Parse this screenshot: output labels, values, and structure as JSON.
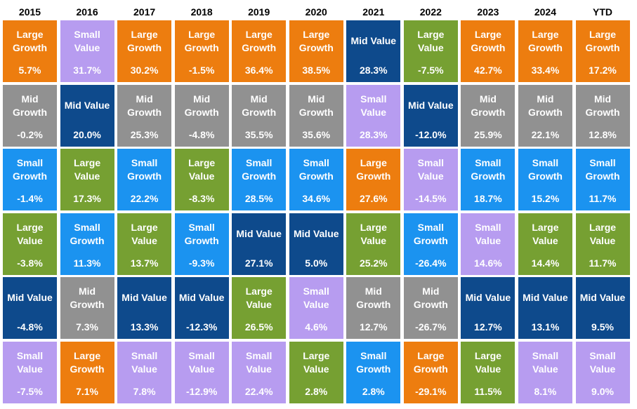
{
  "chart_data": {
    "type": "table",
    "columns": [
      "2015",
      "2016",
      "2017",
      "2018",
      "2019",
      "2020",
      "2021",
      "2022",
      "2023",
      "2024",
      "YTD"
    ],
    "styles": {
      "Large Growth": "#ED7D0F",
      "Small Value": "#B79CF0",
      "Mid Growth": "#919191",
      "Mid Value": "#0E4A8C",
      "Small Growth": "#1B93F0",
      "Large Value": "#76A032"
    },
    "cells": [
      [
        {
          "style": "Large Growth",
          "value": "5.7%"
        },
        {
          "style": "Mid Growth",
          "value": "-0.2%"
        },
        {
          "style": "Small Growth",
          "value": "-1.4%"
        },
        {
          "style": "Large Value",
          "value": "-3.8%"
        },
        {
          "style": "Mid Value",
          "value": "-4.8%"
        },
        {
          "style": "Small Value",
          "value": "-7.5%"
        }
      ],
      [
        {
          "style": "Small Value",
          "value": "31.7%"
        },
        {
          "style": "Mid Value",
          "value": "20.0%"
        },
        {
          "style": "Large Value",
          "value": "17.3%"
        },
        {
          "style": "Small Growth",
          "value": "11.3%"
        },
        {
          "style": "Mid Growth",
          "value": "7.3%"
        },
        {
          "style": "Large Growth",
          "value": "7.1%"
        }
      ],
      [
        {
          "style": "Large Growth",
          "value": "30.2%"
        },
        {
          "style": "Mid Growth",
          "value": "25.3%"
        },
        {
          "style": "Small Growth",
          "value": "22.2%"
        },
        {
          "style": "Large Value",
          "value": "13.7%"
        },
        {
          "style": "Mid Value",
          "value": "13.3%"
        },
        {
          "style": "Small Value",
          "value": "7.8%"
        }
      ],
      [
        {
          "style": "Large Growth",
          "value": "-1.5%"
        },
        {
          "style": "Mid Growth",
          "value": "-4.8%"
        },
        {
          "style": "Large Value",
          "value": "-8.3%"
        },
        {
          "style": "Small Growth",
          "value": "-9.3%"
        },
        {
          "style": "Mid Value",
          "value": "-12.3%"
        },
        {
          "style": "Small Value",
          "value": "-12.9%"
        }
      ],
      [
        {
          "style": "Large Growth",
          "value": "36.4%"
        },
        {
          "style": "Mid Growth",
          "value": "35.5%"
        },
        {
          "style": "Small Growth",
          "value": "28.5%"
        },
        {
          "style": "Mid Value",
          "value": "27.1%"
        },
        {
          "style": "Large Value",
          "value": "26.5%"
        },
        {
          "style": "Small Value",
          "value": "22.4%"
        }
      ],
      [
        {
          "style": "Large Growth",
          "value": "38.5%"
        },
        {
          "style": "Mid Growth",
          "value": "35.6%"
        },
        {
          "style": "Small Growth",
          "value": "34.6%"
        },
        {
          "style": "Mid Value",
          "value": "5.0%"
        },
        {
          "style": "Small Value",
          "value": "4.6%"
        },
        {
          "style": "Large Value",
          "value": "2.8%"
        }
      ],
      [
        {
          "style": "Mid Value",
          "value": "28.3%"
        },
        {
          "style": "Small Value",
          "value": "28.3%"
        },
        {
          "style": "Large Growth",
          "value": "27.6%"
        },
        {
          "style": "Large Value",
          "value": "25.2%"
        },
        {
          "style": "Mid Growth",
          "value": "12.7%"
        },
        {
          "style": "Small Growth",
          "value": "2.8%"
        }
      ],
      [
        {
          "style": "Large Value",
          "value": "-7.5%"
        },
        {
          "style": "Mid Value",
          "value": "-12.0%"
        },
        {
          "style": "Small Value",
          "value": "-14.5%"
        },
        {
          "style": "Small Growth",
          "value": "-26.4%"
        },
        {
          "style": "Mid Growth",
          "value": "-26.7%"
        },
        {
          "style": "Large Growth",
          "value": "-29.1%"
        }
      ],
      [
        {
          "style": "Large Growth",
          "value": "42.7%"
        },
        {
          "style": "Mid Growth",
          "value": "25.9%"
        },
        {
          "style": "Small Growth",
          "value": "18.7%"
        },
        {
          "style": "Small Value",
          "value": "14.6%"
        },
        {
          "style": "Mid Value",
          "value": "12.7%"
        },
        {
          "style": "Large Value",
          "value": "11.5%"
        }
      ],
      [
        {
          "style": "Large Growth",
          "value": "33.4%"
        },
        {
          "style": "Mid Growth",
          "value": "22.1%"
        },
        {
          "style": "Small Growth",
          "value": "15.2%"
        },
        {
          "style": "Large Value",
          "value": "14.4%"
        },
        {
          "style": "Mid Value",
          "value": "13.1%"
        },
        {
          "style": "Small Value",
          "value": "8.1%"
        }
      ],
      [
        {
          "style": "Large Growth",
          "value": "17.2%"
        },
        {
          "style": "Mid Growth",
          "value": "12.8%"
        },
        {
          "style": "Small Growth",
          "value": "11.7%"
        },
        {
          "style": "Large Value",
          "value": "11.7%"
        },
        {
          "style": "Mid Value",
          "value": "9.5%"
        },
        {
          "style": "Small Value",
          "value": "9.0%"
        }
      ]
    ]
  }
}
